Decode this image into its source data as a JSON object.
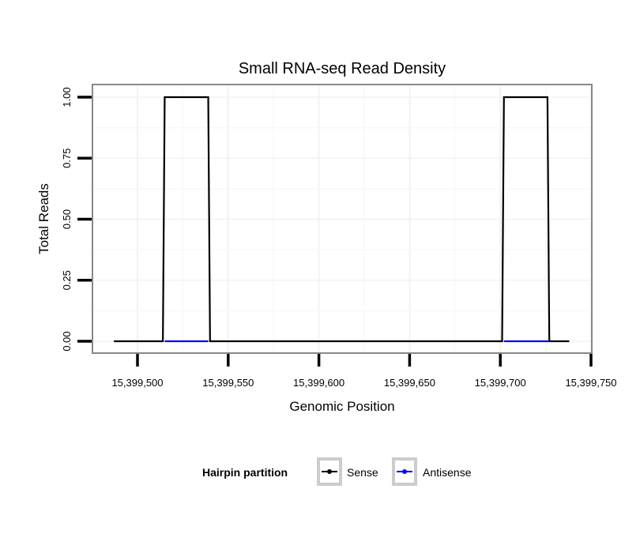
{
  "chart_data": {
    "type": "line",
    "title": "Small RNA-seq Read Density",
    "xlabel": "Genomic Position",
    "ylabel": "Total Reads",
    "xlim": [
      15399475,
      15399750
    ],
    "ylim": [
      -0.05,
      1.05
    ],
    "x_ticks": [
      15399500,
      15399550,
      15399600,
      15399650,
      15399700,
      15399750
    ],
    "x_tick_labels": [
      "15,399,500",
      "15,399,550",
      "15,399,600",
      "15,399,650",
      "15,399,700",
      "15,399,750"
    ],
    "y_ticks": [
      0,
      0.25,
      0.5,
      0.75,
      1
    ],
    "y_tick_labels": [
      "0.00",
      "0.25",
      "0.50",
      "0.75",
      "1.00"
    ],
    "grid": true,
    "legend": {
      "title": "Hairpin partition",
      "placement": "bottom",
      "entries": [
        "Sense",
        "Antisense"
      ]
    },
    "series": [
      {
        "name": "Sense",
        "color": "#000000",
        "x": [
          15399487,
          15399514,
          15399515,
          15399539,
          15399540,
          15399701,
          15399702,
          15399726,
          15399727,
          15399738
        ],
        "y": [
          0,
          0,
          1,
          1,
          0,
          0,
          1,
          1,
          0,
          0
        ]
      },
      {
        "name": "Antisense",
        "color": "#0000ff",
        "segments": [
          {
            "x": [
              15399515,
              15399539
            ],
            "y": [
              0,
              0
            ]
          },
          {
            "x": [
              15399702,
              15399727
            ],
            "y": [
              0,
              0
            ]
          }
        ]
      }
    ]
  }
}
